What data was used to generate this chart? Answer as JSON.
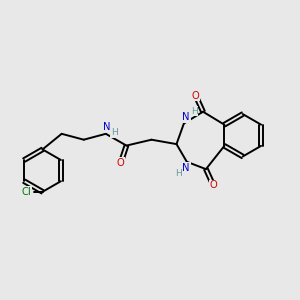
{
  "bg_color": "#e8e8e8",
  "bond_color": "#000000",
  "atom_colors": {
    "O": "#cc0000",
    "N": "#0000cc",
    "H": "#6a9a9a",
    "Cl": "#007700",
    "C": "#000000"
  },
  "figsize": [
    3.0,
    3.0
  ],
  "dpi": 100,
  "lw": 1.4,
  "fs": 7.2
}
